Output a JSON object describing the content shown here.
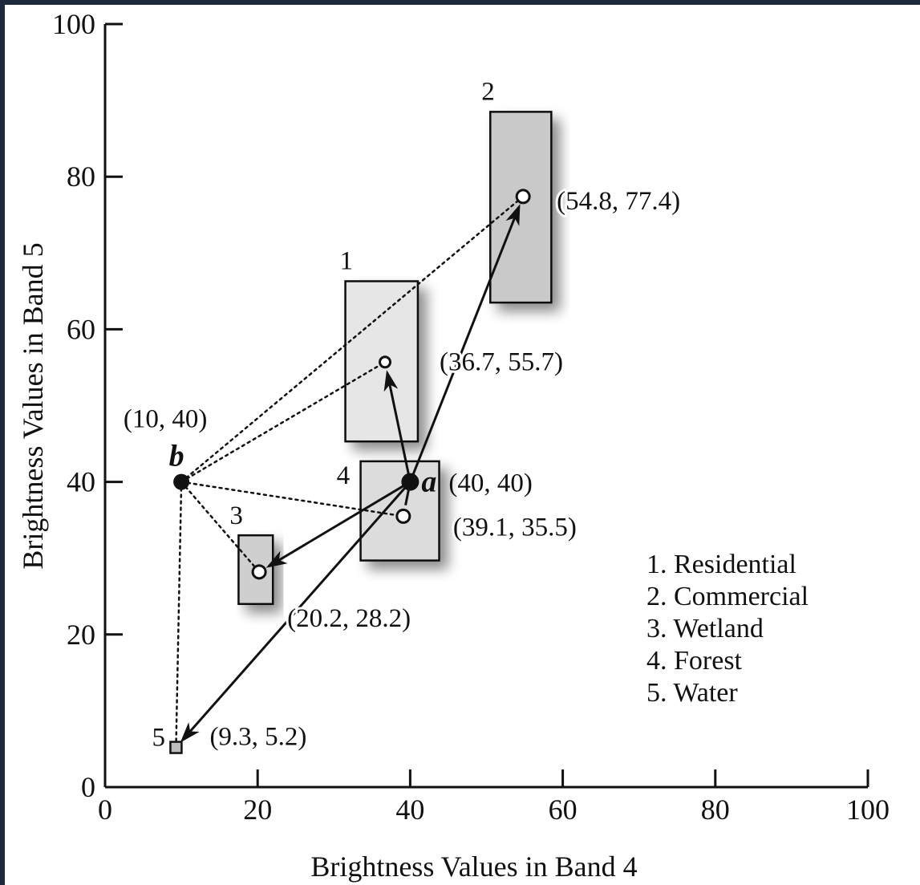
{
  "chart_data": {
    "type": "scatter",
    "xlabel": "Brightness Values in Band 4",
    "ylabel": "Brightness Values in Band 5",
    "xlim": [
      0,
      100
    ],
    "ylim": [
      0,
      100
    ],
    "x_ticks": [
      0,
      20,
      40,
      60,
      80,
      100
    ],
    "y_ticks": [
      0,
      20,
      40,
      60,
      80,
      100
    ],
    "grid": false,
    "legend_position": "bottom-right",
    "legend": [
      "1. Residential",
      "2. Commercial",
      "3. Wetland",
      "4. Forest",
      "5. Water"
    ],
    "class_boxes": [
      {
        "id": "1",
        "x0": 31.5,
        "x1": 41,
        "y0": 45.3,
        "y1": 66.3,
        "fill": "#e6e6e6"
      },
      {
        "id": "2",
        "x0": 50.5,
        "x1": 58.5,
        "y0": 63.5,
        "y1": 88.5,
        "fill": "#c9c9c9"
      },
      {
        "id": "3",
        "x0": 17.5,
        "x1": 22,
        "y0": 24,
        "y1": 33,
        "fill": "#cfcfcf"
      },
      {
        "id": "4",
        "x0": 33.5,
        "x1": 43.8,
        "y0": 29.7,
        "y1": 42.7,
        "fill": "#dcdcdc"
      }
    ],
    "class_means": [
      {
        "id": "1",
        "x": 36.7,
        "y": 55.7,
        "label": "(36.7, 55.7)"
      },
      {
        "id": "2",
        "x": 54.8,
        "y": 77.4,
        "label": "(54.8, 77.4)"
      },
      {
        "id": "3",
        "x": 20.2,
        "y": 28.2,
        "label": "(20.2, 28.2)"
      },
      {
        "id": "4",
        "x": 39.1,
        "y": 35.5,
        "label": "(39.1, 35.5)"
      },
      {
        "id": "5",
        "x": 9.3,
        "y": 5.2,
        "label": "(9.3, 5.2)"
      }
    ],
    "unknown_pixels": [
      {
        "name": "a",
        "x": 40,
        "y": 40,
        "label": "(40, 40)"
      },
      {
        "name": "b",
        "x": 10,
        "y": 40,
        "label": "(10, 40)"
      }
    ]
  }
}
